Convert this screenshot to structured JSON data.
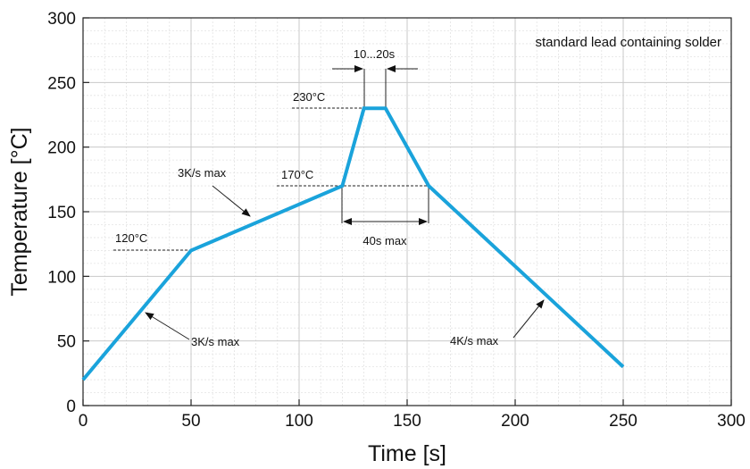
{
  "chart_data": {
    "type": "line",
    "title": "",
    "xlabel": "Time [s]",
    "ylabel": "Temperature [°C]",
    "xlim": [
      0,
      300
    ],
    "ylim": [
      0,
      300
    ],
    "x_ticks": [
      0,
      50,
      100,
      150,
      200,
      250,
      300
    ],
    "y_ticks": [
      0,
      50,
      100,
      150,
      200,
      250,
      300
    ],
    "grid": true,
    "minor_grid": true,
    "line_color": "#1aa3db",
    "series": [
      {
        "x": [
          0,
          50,
          120,
          130,
          140,
          160,
          250
        ],
        "y": [
          20,
          120,
          170,
          230,
          230,
          170,
          30
        ]
      }
    ],
    "annotations": {
      "legend_text": "standard lead containing solder",
      "temp_120": "120°C",
      "temp_170": "170°C",
      "temp_230": "230°C",
      "rate_1": "3K/s max",
      "rate_2": "3K/s max",
      "rate_3": "4K/s max",
      "dwell_peak": "10...20s",
      "dwell_liquidus": "40s max"
    }
  }
}
